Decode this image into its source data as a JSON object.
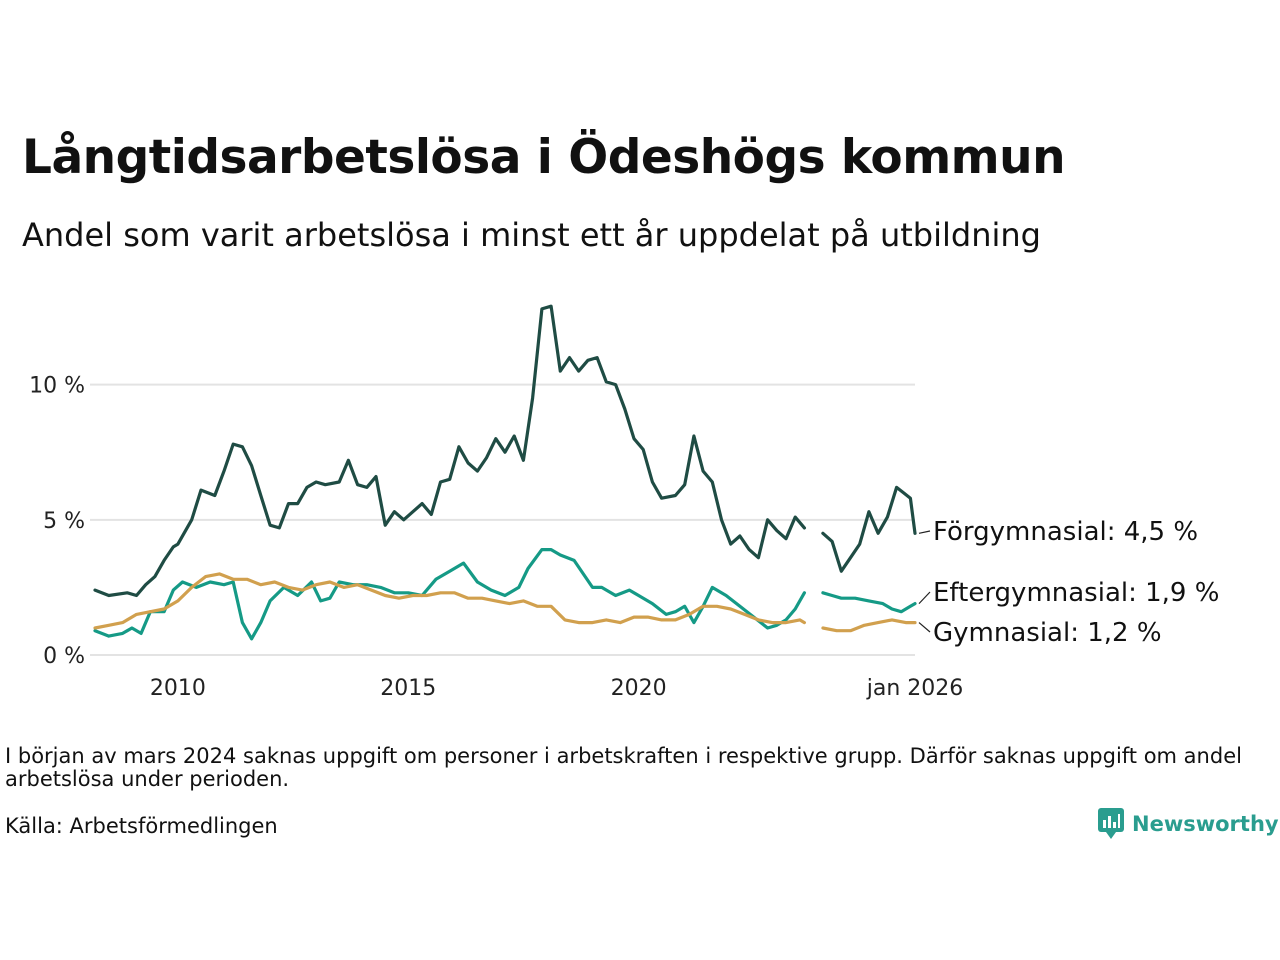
{
  "title": "Långtidsarbetslösa i Ödeshögs kommun",
  "subtitle": "Andel som varit arbetslösa i minst ett år uppdelat på utbildning",
  "note": "I början av mars 2024 saknas uppgift om personer i arbetskraften i respektive grupp. Därför saknas uppgift om andel arbetslösa under perioden.",
  "source": "Källa: Arbetsförmedlingen",
  "brand": "Newsworthy",
  "chart_data": {
    "type": "line",
    "title": "Långtidsarbetslösa i Ödeshögs kommun",
    "subtitle": "Andel som varit arbetslösa i minst ett år uppdelat på utbildning",
    "xlabel": "",
    "ylabel": "",
    "xlim": [
      2008.2,
      2026.0
    ],
    "ylim": [
      0,
      13.5
    ],
    "y_ticks": [
      {
        "value": 0,
        "label": "0 %"
      },
      {
        "value": 5,
        "label": "5 %"
      },
      {
        "value": 10,
        "label": "10 %"
      }
    ],
    "x_ticks": [
      {
        "value": 2010,
        "label": "2010"
      },
      {
        "value": 2015,
        "label": "2015"
      },
      {
        "value": 2020,
        "label": "2020"
      },
      {
        "value": 2026.0,
        "label": "jan 2026"
      }
    ],
    "gap": [
      2024.0,
      2024.3
    ],
    "series": [
      {
        "name": "Förgymnasial",
        "label": "Förgymnasial: 4,5 %",
        "color": "#1f4c44",
        "points": [
          [
            2008.2,
            2.4
          ],
          [
            2008.5,
            2.2
          ],
          [
            2008.9,
            2.3
          ],
          [
            2009.1,
            2.2
          ],
          [
            2009.3,
            2.6
          ],
          [
            2009.5,
            2.9
          ],
          [
            2009.7,
            3.5
          ],
          [
            2009.9,
            4.0
          ],
          [
            2010.0,
            4.1
          ],
          [
            2010.3,
            5.0
          ],
          [
            2010.5,
            6.1
          ],
          [
            2010.8,
            5.9
          ],
          [
            2011.0,
            6.8
          ],
          [
            2011.2,
            7.8
          ],
          [
            2011.4,
            7.7
          ],
          [
            2011.6,
            7.0
          ],
          [
            2011.8,
            5.9
          ],
          [
            2012.0,
            4.8
          ],
          [
            2012.2,
            4.7
          ],
          [
            2012.4,
            5.6
          ],
          [
            2012.6,
            5.6
          ],
          [
            2012.8,
            6.2
          ],
          [
            2013.0,
            6.4
          ],
          [
            2013.2,
            6.3
          ],
          [
            2013.5,
            6.4
          ],
          [
            2013.7,
            7.2
          ],
          [
            2013.9,
            6.3
          ],
          [
            2014.1,
            6.2
          ],
          [
            2014.3,
            6.6
          ],
          [
            2014.5,
            4.8
          ],
          [
            2014.7,
            5.3
          ],
          [
            2014.9,
            5.0
          ],
          [
            2015.1,
            5.3
          ],
          [
            2015.3,
            5.6
          ],
          [
            2015.5,
            5.2
          ],
          [
            2015.7,
            6.4
          ],
          [
            2015.9,
            6.5
          ],
          [
            2016.1,
            7.7
          ],
          [
            2016.3,
            7.1
          ],
          [
            2016.5,
            6.8
          ],
          [
            2016.7,
            7.3
          ],
          [
            2016.9,
            8.0
          ],
          [
            2017.1,
            7.5
          ],
          [
            2017.3,
            8.1
          ],
          [
            2017.5,
            7.2
          ],
          [
            2017.7,
            9.5
          ],
          [
            2017.9,
            12.8
          ],
          [
            2018.1,
            12.9
          ],
          [
            2018.3,
            10.5
          ],
          [
            2018.5,
            11.0
          ],
          [
            2018.7,
            10.5
          ],
          [
            2018.9,
            10.9
          ],
          [
            2019.1,
            11.0
          ],
          [
            2019.3,
            10.1
          ],
          [
            2019.5,
            10.0
          ],
          [
            2019.7,
            9.1
          ],
          [
            2019.9,
            8.0
          ],
          [
            2020.1,
            7.6
          ],
          [
            2020.3,
            6.4
          ],
          [
            2020.5,
            5.8
          ],
          [
            2020.8,
            5.9
          ],
          [
            2021.0,
            6.3
          ],
          [
            2021.2,
            8.1
          ],
          [
            2021.4,
            6.8
          ],
          [
            2021.6,
            6.4
          ],
          [
            2021.8,
            5.0
          ],
          [
            2022.0,
            4.1
          ],
          [
            2022.2,
            4.4
          ],
          [
            2022.4,
            3.9
          ],
          [
            2022.6,
            3.6
          ],
          [
            2022.8,
            5.0
          ],
          [
            2023.0,
            4.6
          ],
          [
            2023.2,
            4.3
          ],
          [
            2023.4,
            5.1
          ],
          [
            2023.6,
            4.7
          ]
        ]
      },
      {
        "name": "Förgymnasial (fortsättning)",
        "color": "#1f4c44",
        "points": [
          [
            2024.0,
            4.5
          ],
          [
            2024.2,
            4.2
          ],
          [
            2024.4,
            3.1
          ],
          [
            2024.6,
            3.6
          ],
          [
            2024.8,
            4.1
          ],
          [
            2025.0,
            5.3
          ],
          [
            2025.2,
            4.5
          ],
          [
            2025.4,
            5.1
          ],
          [
            2025.6,
            6.2
          ],
          [
            2025.75,
            6.0
          ],
          [
            2025.9,
            5.8
          ],
          [
            2026.0,
            4.5
          ]
        ]
      },
      {
        "name": "Eftergymnasial",
        "label": "Eftergymnasial: 1,9 %",
        "color": "#159a86",
        "points": [
          [
            2008.2,
            0.9
          ],
          [
            2008.5,
            0.7
          ],
          [
            2008.8,
            0.8
          ],
          [
            2009.0,
            1.0
          ],
          [
            2009.2,
            0.8
          ],
          [
            2009.4,
            1.6
          ],
          [
            2009.7,
            1.6
          ],
          [
            2009.9,
            2.4
          ],
          [
            2010.1,
            2.7
          ],
          [
            2010.4,
            2.5
          ],
          [
            2010.7,
            2.7
          ],
          [
            2011.0,
            2.6
          ],
          [
            2011.2,
            2.7
          ],
          [
            2011.4,
            1.2
          ],
          [
            2011.6,
            0.6
          ],
          [
            2011.8,
            1.2
          ],
          [
            2012.0,
            2.0
          ],
          [
            2012.3,
            2.5
          ],
          [
            2012.6,
            2.2
          ],
          [
            2012.9,
            2.7
          ],
          [
            2013.1,
            2.0
          ],
          [
            2013.3,
            2.1
          ],
          [
            2013.5,
            2.7
          ],
          [
            2013.8,
            2.6
          ],
          [
            2014.1,
            2.6
          ],
          [
            2014.4,
            2.5
          ],
          [
            2014.7,
            2.3
          ],
          [
            2015.0,
            2.3
          ],
          [
            2015.3,
            2.2
          ],
          [
            2015.6,
            2.8
          ],
          [
            2015.9,
            3.1
          ],
          [
            2016.2,
            3.4
          ],
          [
            2016.5,
            2.7
          ],
          [
            2016.8,
            2.4
          ],
          [
            2017.1,
            2.2
          ],
          [
            2017.4,
            2.5
          ],
          [
            2017.6,
            3.2
          ],
          [
            2017.9,
            3.9
          ],
          [
            2018.1,
            3.9
          ],
          [
            2018.3,
            3.7
          ],
          [
            2018.6,
            3.5
          ],
          [
            2018.8,
            3.0
          ],
          [
            2019.0,
            2.5
          ],
          [
            2019.2,
            2.5
          ],
          [
            2019.5,
            2.2
          ],
          [
            2019.8,
            2.4
          ],
          [
            2020.0,
            2.2
          ],
          [
            2020.3,
            1.9
          ],
          [
            2020.6,
            1.5
          ],
          [
            2020.8,
            1.6
          ],
          [
            2021.0,
            1.8
          ],
          [
            2021.2,
            1.2
          ],
          [
            2021.4,
            1.8
          ],
          [
            2021.6,
            2.5
          ],
          [
            2021.9,
            2.2
          ],
          [
            2022.2,
            1.8
          ],
          [
            2022.5,
            1.4
          ],
          [
            2022.8,
            1.0
          ],
          [
            2023.0,
            1.1
          ],
          [
            2023.2,
            1.3
          ],
          [
            2023.4,
            1.7
          ],
          [
            2023.6,
            2.3
          ]
        ]
      },
      {
        "name": "Eftergymnasial (fortsättning)",
        "color": "#159a86",
        "points": [
          [
            2024.0,
            2.3
          ],
          [
            2024.2,
            2.2
          ],
          [
            2024.4,
            2.1
          ],
          [
            2024.7,
            2.1
          ],
          [
            2025.0,
            2.0
          ],
          [
            2025.3,
            1.9
          ],
          [
            2025.5,
            1.7
          ],
          [
            2025.7,
            1.6
          ],
          [
            2025.9,
            1.8
          ],
          [
            2026.0,
            1.9
          ]
        ]
      },
      {
        "name": "Gymnasial",
        "label": "Gymnasial: 1,2 %",
        "color": "#d1a04e",
        "points": [
          [
            2008.2,
            1.0
          ],
          [
            2008.5,
            1.1
          ],
          [
            2008.8,
            1.2
          ],
          [
            2009.1,
            1.5
          ],
          [
            2009.4,
            1.6
          ],
          [
            2009.7,
            1.7
          ],
          [
            2010.0,
            2.0
          ],
          [
            2010.3,
            2.5
          ],
          [
            2010.6,
            2.9
          ],
          [
            2010.9,
            3.0
          ],
          [
            2011.2,
            2.8
          ],
          [
            2011.5,
            2.8
          ],
          [
            2011.8,
            2.6
          ],
          [
            2012.1,
            2.7
          ],
          [
            2012.4,
            2.5
          ],
          [
            2012.7,
            2.4
          ],
          [
            2013.0,
            2.6
          ],
          [
            2013.3,
            2.7
          ],
          [
            2013.6,
            2.5
          ],
          [
            2013.9,
            2.6
          ],
          [
            2014.2,
            2.4
          ],
          [
            2014.5,
            2.2
          ],
          [
            2014.8,
            2.1
          ],
          [
            2015.1,
            2.2
          ],
          [
            2015.4,
            2.2
          ],
          [
            2015.7,
            2.3
          ],
          [
            2016.0,
            2.3
          ],
          [
            2016.3,
            2.1
          ],
          [
            2016.6,
            2.1
          ],
          [
            2016.9,
            2.0
          ],
          [
            2017.2,
            1.9
          ],
          [
            2017.5,
            2.0
          ],
          [
            2017.8,
            1.8
          ],
          [
            2018.1,
            1.8
          ],
          [
            2018.4,
            1.3
          ],
          [
            2018.7,
            1.2
          ],
          [
            2019.0,
            1.2
          ],
          [
            2019.3,
            1.3
          ],
          [
            2019.6,
            1.2
          ],
          [
            2019.9,
            1.4
          ],
          [
            2020.2,
            1.4
          ],
          [
            2020.5,
            1.3
          ],
          [
            2020.8,
            1.3
          ],
          [
            2021.1,
            1.5
          ],
          [
            2021.4,
            1.8
          ],
          [
            2021.7,
            1.8
          ],
          [
            2022.0,
            1.7
          ],
          [
            2022.3,
            1.5
          ],
          [
            2022.6,
            1.3
          ],
          [
            2022.9,
            1.2
          ],
          [
            2023.2,
            1.2
          ],
          [
            2023.5,
            1.3
          ],
          [
            2023.6,
            1.2
          ]
        ]
      },
      {
        "name": "Gymnasial (fortsättning)",
        "color": "#d1a04e",
        "points": [
          [
            2024.0,
            1.0
          ],
          [
            2024.3,
            0.9
          ],
          [
            2024.6,
            0.9
          ],
          [
            2024.9,
            1.1
          ],
          [
            2025.2,
            1.2
          ],
          [
            2025.5,
            1.3
          ],
          [
            2025.8,
            1.2
          ],
          [
            2026.0,
            1.2
          ]
        ]
      }
    ]
  }
}
